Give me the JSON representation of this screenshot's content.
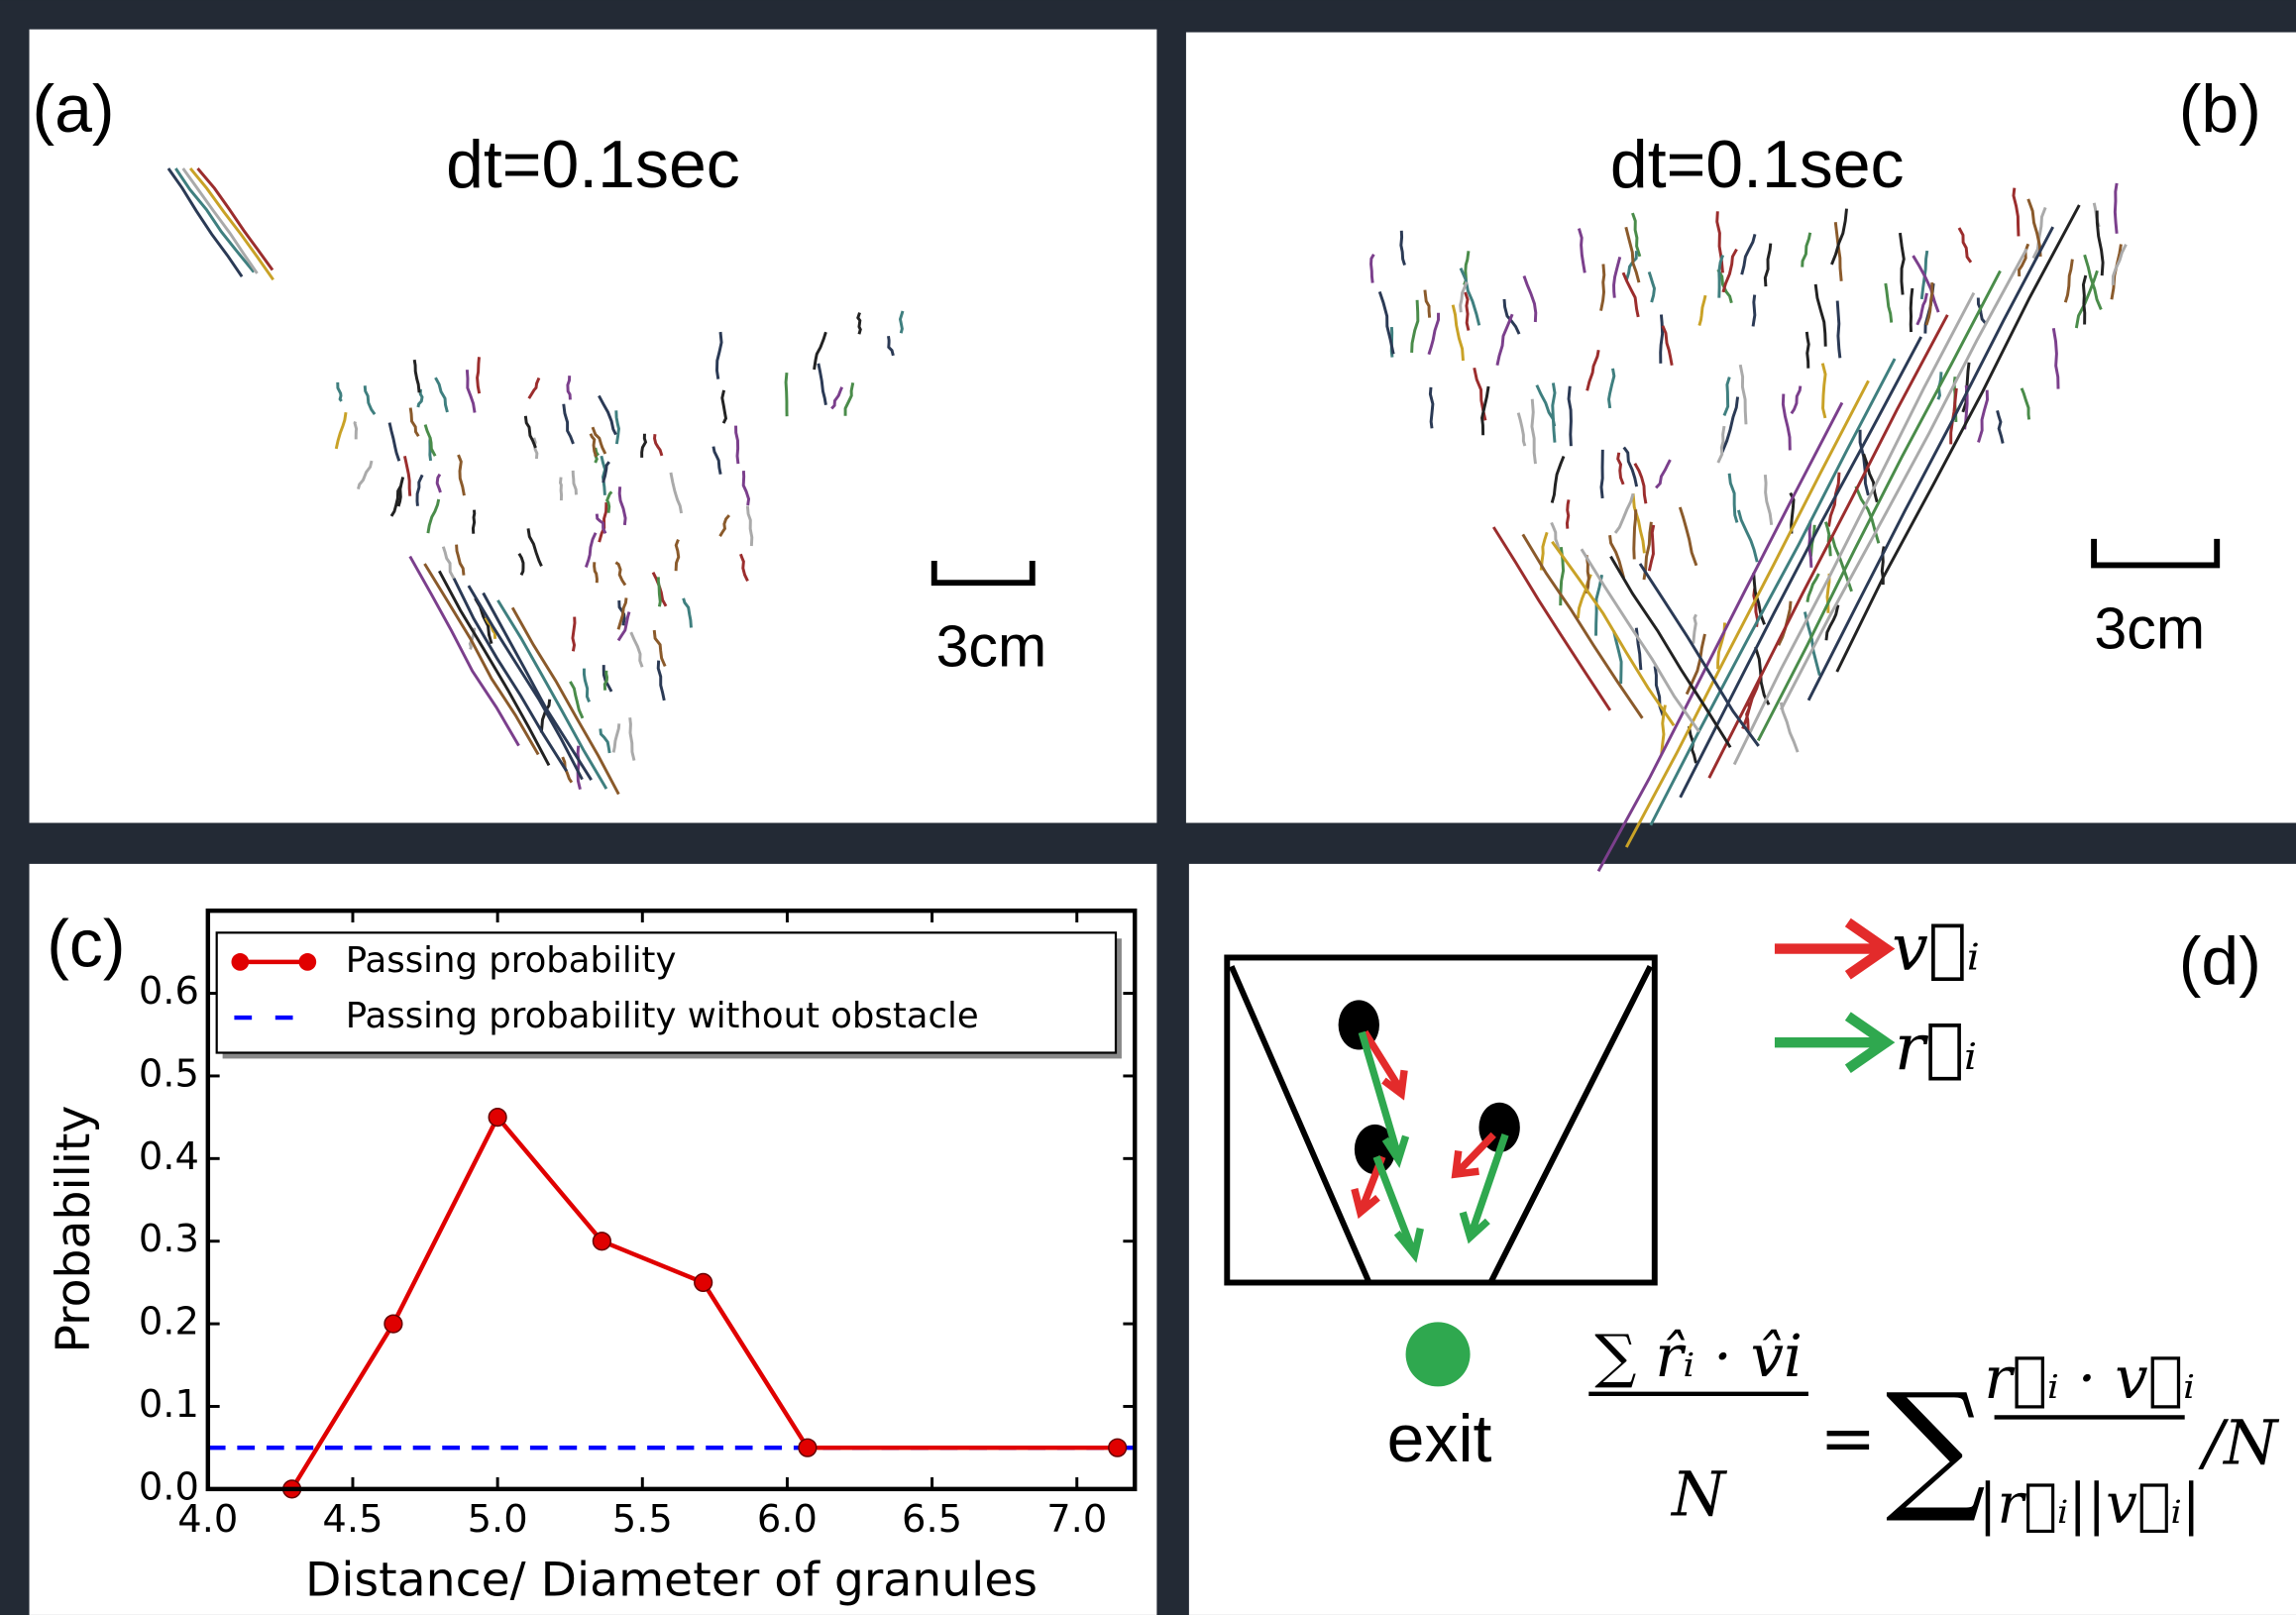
{
  "panels": {
    "a": {
      "label": "(a)",
      "dt": "dt=0.1sec",
      "scale": "3cm"
    },
    "b": {
      "label": "(b)",
      "dt": "dt=0.1sec",
      "scale": "3cm"
    },
    "c": {
      "label": "(c)"
    },
    "d": {
      "label": "(d)",
      "legend_v": "v⃗ᵢ",
      "legend_r": "r⃗ᵢ",
      "exit": "exit",
      "formula": {
        "left_num": "∑ r̂ᵢ · v̂i",
        "left_den": "N",
        "equals": "=",
        "sum": "∑",
        "right_num": "r⃗ᵢ · v⃗ᵢ",
        "right_den": "|r⃗ᵢ||v⃗ᵢ|",
        "tail": "/N"
      }
    }
  },
  "chart_data": {
    "type": "line",
    "x_label": "Distance/ Diameter of granules",
    "y_label": "Probability",
    "series": [
      {
        "name": "Passing probability",
        "color": "#e00000",
        "x": [
          4.29,
          4.64,
          5.0,
          5.36,
          5.71,
          6.07,
          7.14
        ],
        "values": [
          0,
          0.2,
          0.45,
          0.3,
          0.25,
          0.05,
          0.05
        ]
      }
    ],
    "reference_line": {
      "name": "Passing probability without obstacle",
      "color": "#0000ff",
      "value": 0.05,
      "dashed": true
    },
    "xlim": [
      4.0,
      7.2
    ],
    "ylim": [
      0,
      0.7
    ],
    "xticks": [
      {
        "value": 4,
        "label": "4.0"
      },
      {
        "value": 4.5,
        "label": "4.5"
      },
      {
        "value": 5,
        "label": "5.0"
      },
      {
        "value": 5.5,
        "label": "5.5"
      },
      {
        "value": 6,
        "label": "6.0"
      },
      {
        "value": 6.5,
        "label": "6.5"
      },
      {
        "value": 7,
        "label": "7.0"
      }
    ],
    "yticks": [
      {
        "value": 0,
        "label": "0.0"
      },
      {
        "value": 0.1,
        "label": "0.1"
      },
      {
        "value": 0.2,
        "label": "0.2"
      },
      {
        "value": 0.3,
        "label": "0.3"
      },
      {
        "value": 0.4,
        "label": "0.4"
      },
      {
        "value": 0.5,
        "label": "0.5"
      },
      {
        "value": 0.6,
        "label": "0.6"
      }
    ],
    "legend_position": "upper-left"
  }
}
